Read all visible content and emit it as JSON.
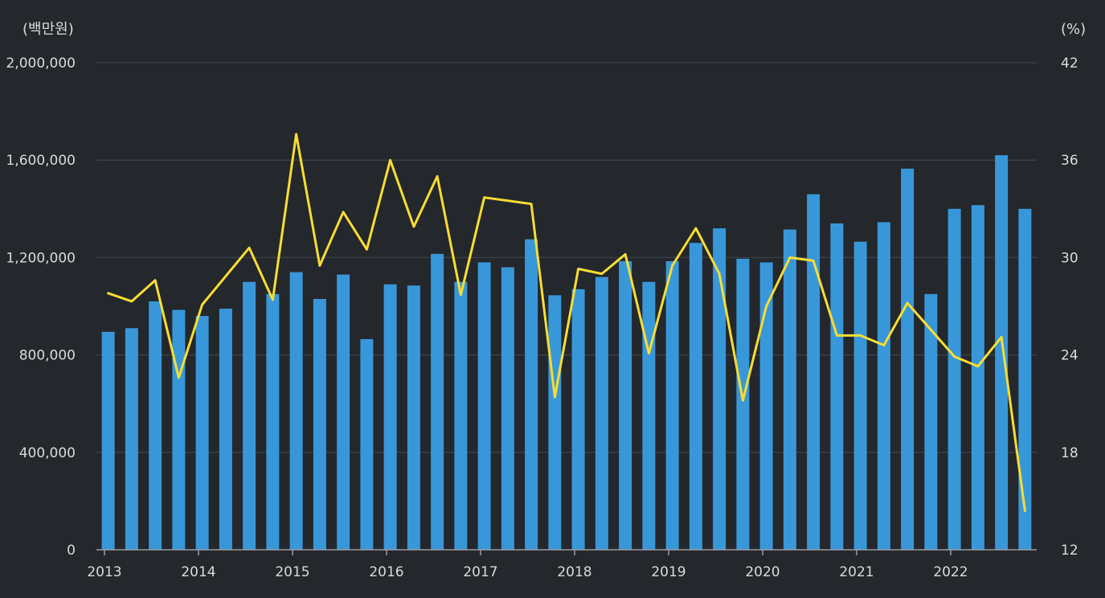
{
  "colors": {
    "background": "#24272c",
    "grid": "#3a3e45",
    "axis": "#9a9ca1",
    "bar": "#3897d9",
    "line": "#f7dd32",
    "text": "#d9dadc"
  },
  "chart_data": {
    "type": "bar",
    "y_left_unit": "(백만원)",
    "y_right_unit": "(%)",
    "y_left_ticks": [
      "0",
      "400,000",
      "800,000",
      "1,200,000",
      "1,600,000",
      "2,000,000"
    ],
    "y_right_ticks": [
      "12",
      "18",
      "24",
      "30",
      "36",
      "42"
    ],
    "ylim_left": [
      0,
      2000000
    ],
    "ylim_right": [
      12,
      42
    ],
    "x_tick_labels": [
      "2013",
      "2014",
      "2015",
      "2016",
      "2017",
      "2018",
      "2019",
      "2020",
      "2021",
      "2022"
    ],
    "grid": true,
    "series": [
      {
        "kind": "bar",
        "axis": "left",
        "values": [
          895000,
          910000,
          1020000,
          985000,
          960000,
          990000,
          1100000,
          1050000,
          1140000,
          1030000,
          1130000,
          865000,
          1090000,
          1085000,
          1215000,
          1100000,
          1180000,
          1160000,
          1275000,
          1045000,
          1070000,
          1120000,
          1185000,
          1100000,
          1185000,
          1260000,
          1320000,
          1195000,
          1180000,
          1315000,
          1460000,
          1340000,
          1265000,
          1345000,
          1565000,
          1050000,
          1400000,
          1415000,
          1620000,
          1400000
        ]
      },
      {
        "kind": "line",
        "axis": "right",
        "values": [
          27.8,
          27.3,
          28.6,
          22.6,
          27.1,
          null,
          30.6,
          27.4,
          37.6,
          29.5,
          32.8,
          30.5,
          36.0,
          31.9,
          35.0,
          27.7,
          33.7,
          null,
          33.3,
          21.4,
          29.3,
          29.0,
          30.2,
          24.1,
          29.5,
          31.8,
          29.0,
          21.2,
          27.0,
          30.0,
          29.8,
          25.2,
          25.2,
          24.6,
          27.2,
          null,
          23.9,
          23.3,
          25.1,
          14.4
        ]
      }
    ]
  }
}
